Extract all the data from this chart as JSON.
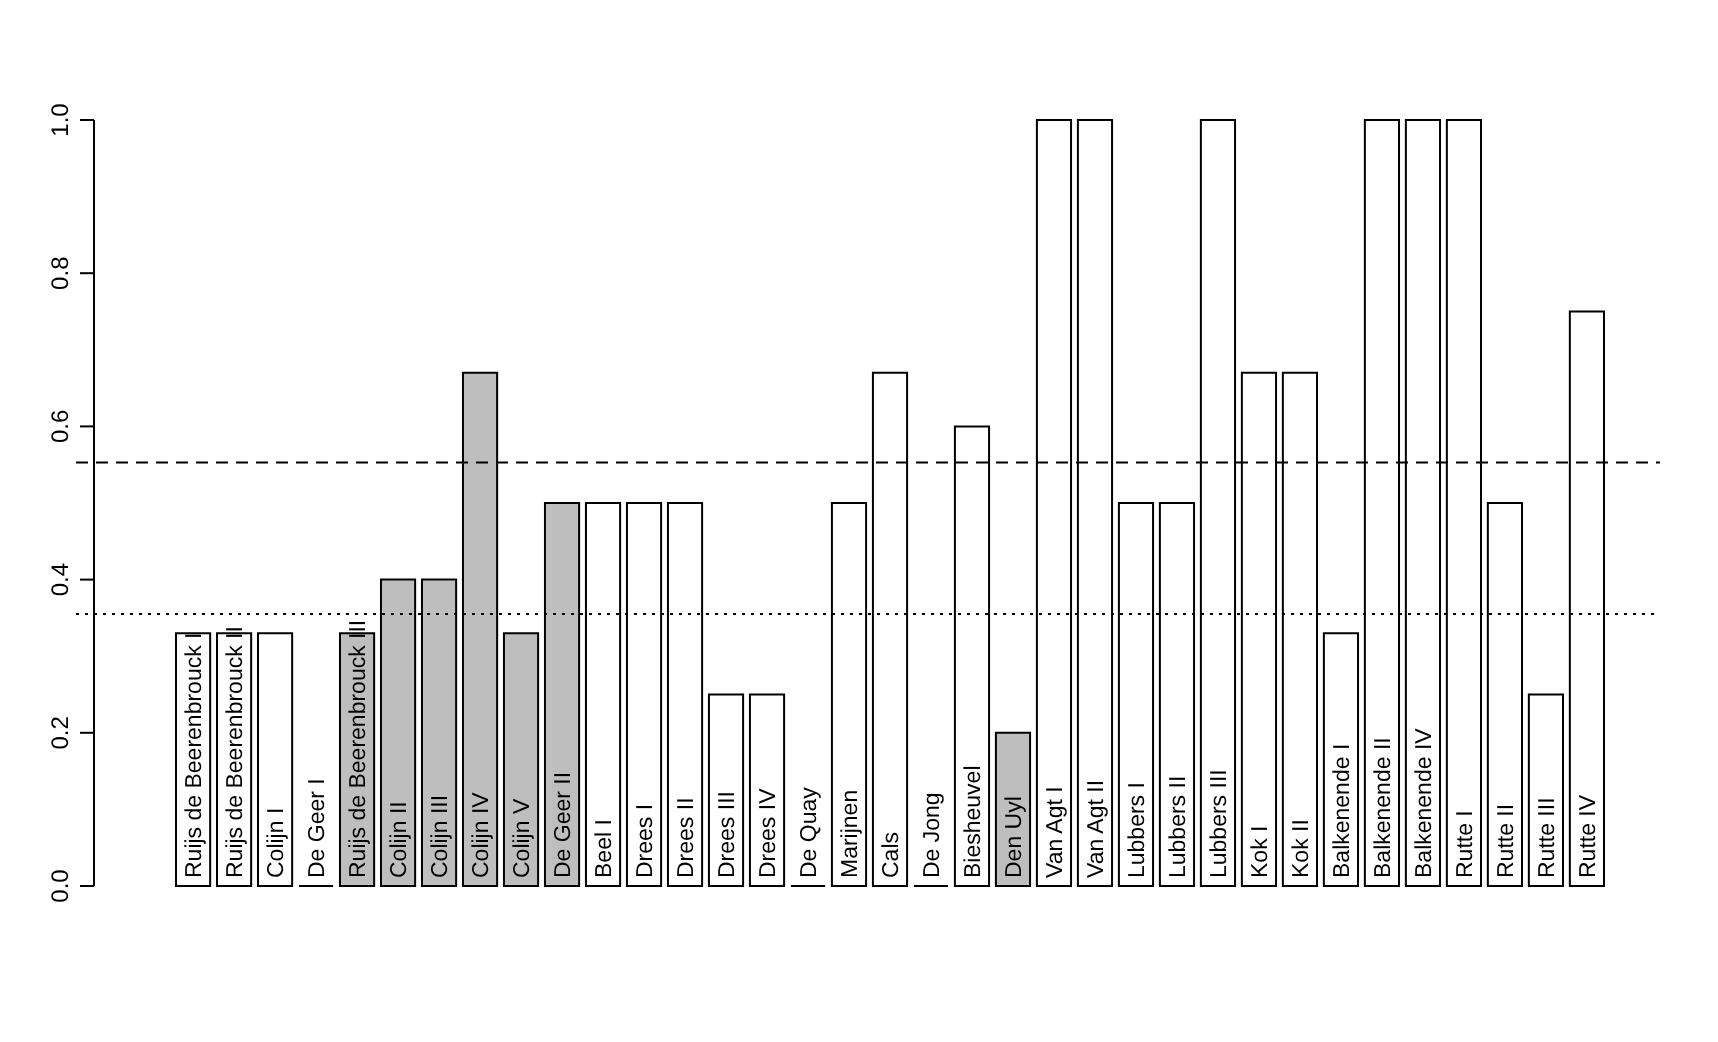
{
  "chart_data": {
    "type": "bar",
    "categories": [
      "Ruijs de Beerenbrouck I",
      "Ruijs de Beerenbrouck II",
      "Colijn I",
      "De Geer I",
      "Ruijs de Beerenbrouck III",
      "Colijn II",
      "Colijn III",
      "Colijn IV",
      "Colijn V",
      "De Geer II",
      "Beel I",
      "Drees I",
      "Drees II",
      "Drees III",
      "Drees IV",
      "De Quay",
      "Marijnen",
      "Cals",
      "De Jong",
      "Biesheuvel",
      "Den Uyl",
      "Van Agt I",
      "Van Agt II",
      "Lubbers I",
      "Lubbers II",
      "Lubbers III",
      "Kok I",
      "Kok II",
      "Balkenende I",
      "Balkenende II",
      "Balkenende IV",
      "Rutte I",
      "Rutte II",
      "Rutte III",
      "Rutte IV"
    ],
    "values": [
      0.33,
      0.33,
      0.33,
      0,
      0.33,
      0.4,
      0.4,
      0.67,
      0.33,
      0.5,
      0.5,
      0.5,
      0.5,
      0.25,
      0.25,
      0,
      0.5,
      0.67,
      0,
      0.6,
      0.2,
      1,
      1,
      0.5,
      0.5,
      1,
      0.67,
      0.67,
      0.33,
      1,
      1,
      1,
      0.5,
      0.25,
      0.75
    ],
    "colors": [
      "#ffffff",
      "#ffffff",
      "#ffffff",
      "#000000",
      "#bebebe",
      "#bebebe",
      "#bebebe",
      "#bebebe",
      "#bebebe",
      "#bebebe",
      "#ffffff",
      "#ffffff",
      "#ffffff",
      "#ffffff",
      "#ffffff",
      "#000000",
      "#ffffff",
      "#ffffff",
      "#000000",
      "#ffffff",
      "#bebebe",
      "#ffffff",
      "#ffffff",
      "#ffffff",
      "#ffffff",
      "#ffffff",
      "#ffffff",
      "#ffffff",
      "#ffffff",
      "#ffffff",
      "#ffffff",
      "#ffffff",
      "#ffffff",
      "#ffffff",
      "#ffffff"
    ],
    "ylim": [
      0,
      1
    ],
    "yticks": [
      {
        "value": 0,
        "label": "0.0"
      },
      {
        "value": 0.2,
        "label": "0.2"
      },
      {
        "value": 0.4,
        "label": "0.4"
      },
      {
        "value": 0.6,
        "label": "0.6"
      },
      {
        "value": 0.8,
        "label": "0.8"
      },
      {
        "value": 1,
        "label": "1.0"
      }
    ],
    "ref_lines": [
      {
        "axis": "y",
        "value": 0.553,
        "line_style": "dashed",
        "color": "#000000"
      },
      {
        "axis": "y",
        "value": 0.355,
        "line_style": "dotted",
        "color": "#000000"
      }
    ],
    "grid": false
  }
}
